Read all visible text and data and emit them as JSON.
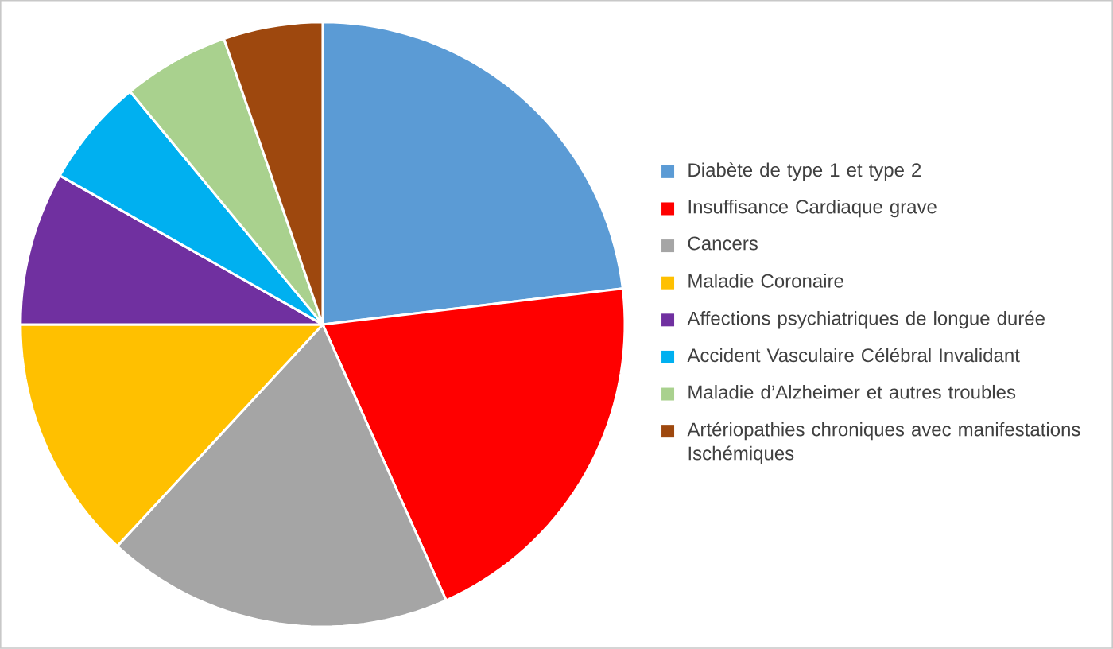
{
  "chart_data": {
    "type": "pie",
    "categories": [
      "Diabète de type 1 et type 2",
      "Insuffisance Cardiaque grave",
      "Cancers",
      "Maladie Coronaire",
      "Affections psychiatriques de longue durée",
      "Accident Vasculaire Célébral Invalidant",
      "Maladie d’Alzheimer et autres troubles",
      "Artériopathies chroniques avec manifestations Ischémiques"
    ],
    "values": [
      23.1,
      20.2,
      18.6,
      13.1,
      8.2,
      5.8,
      5.7,
      5.3
    ],
    "colors": [
      "#5b9bd5",
      "#ff0000",
      "#a5a5a5",
      "#ffc000",
      "#7030a0",
      "#00b0f0",
      "#a9d18e",
      "#9e480e"
    ],
    "legend": "right"
  }
}
